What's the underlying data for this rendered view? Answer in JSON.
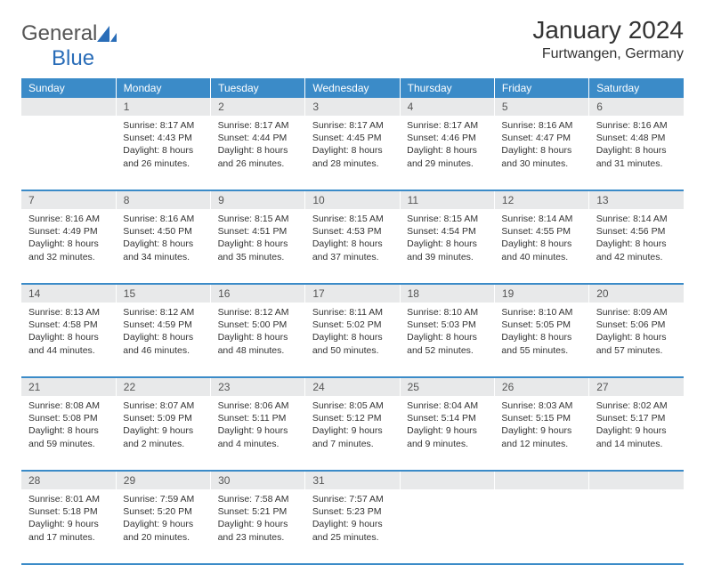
{
  "logo": {
    "general": "General",
    "blue": "Blue"
  },
  "title": "January 2024",
  "location": "Furtwangen, Germany",
  "colors": {
    "header_bg": "#3b8bc8",
    "header_text": "#ffffff",
    "daynum_bg": "#e8e9ea",
    "text": "#333333",
    "logo_gray": "#555555",
    "logo_blue": "#2a6db8"
  },
  "weekdays": [
    "Sunday",
    "Monday",
    "Tuesday",
    "Wednesday",
    "Thursday",
    "Friday",
    "Saturday"
  ],
  "weeks": [
    {
      "days": [
        {
          "num": "",
          "sunrise": "",
          "sunset": "",
          "daylight1": "",
          "daylight2": ""
        },
        {
          "num": "1",
          "sunrise": "Sunrise: 8:17 AM",
          "sunset": "Sunset: 4:43 PM",
          "daylight1": "Daylight: 8 hours",
          "daylight2": "and 26 minutes."
        },
        {
          "num": "2",
          "sunrise": "Sunrise: 8:17 AM",
          "sunset": "Sunset: 4:44 PM",
          "daylight1": "Daylight: 8 hours",
          "daylight2": "and 26 minutes."
        },
        {
          "num": "3",
          "sunrise": "Sunrise: 8:17 AM",
          "sunset": "Sunset: 4:45 PM",
          "daylight1": "Daylight: 8 hours",
          "daylight2": "and 28 minutes."
        },
        {
          "num": "4",
          "sunrise": "Sunrise: 8:17 AM",
          "sunset": "Sunset: 4:46 PM",
          "daylight1": "Daylight: 8 hours",
          "daylight2": "and 29 minutes."
        },
        {
          "num": "5",
          "sunrise": "Sunrise: 8:16 AM",
          "sunset": "Sunset: 4:47 PM",
          "daylight1": "Daylight: 8 hours",
          "daylight2": "and 30 minutes."
        },
        {
          "num": "6",
          "sunrise": "Sunrise: 8:16 AM",
          "sunset": "Sunset: 4:48 PM",
          "daylight1": "Daylight: 8 hours",
          "daylight2": "and 31 minutes."
        }
      ]
    },
    {
      "days": [
        {
          "num": "7",
          "sunrise": "Sunrise: 8:16 AM",
          "sunset": "Sunset: 4:49 PM",
          "daylight1": "Daylight: 8 hours",
          "daylight2": "and 32 minutes."
        },
        {
          "num": "8",
          "sunrise": "Sunrise: 8:16 AM",
          "sunset": "Sunset: 4:50 PM",
          "daylight1": "Daylight: 8 hours",
          "daylight2": "and 34 minutes."
        },
        {
          "num": "9",
          "sunrise": "Sunrise: 8:15 AM",
          "sunset": "Sunset: 4:51 PM",
          "daylight1": "Daylight: 8 hours",
          "daylight2": "and 35 minutes."
        },
        {
          "num": "10",
          "sunrise": "Sunrise: 8:15 AM",
          "sunset": "Sunset: 4:53 PM",
          "daylight1": "Daylight: 8 hours",
          "daylight2": "and 37 minutes."
        },
        {
          "num": "11",
          "sunrise": "Sunrise: 8:15 AM",
          "sunset": "Sunset: 4:54 PM",
          "daylight1": "Daylight: 8 hours",
          "daylight2": "and 39 minutes."
        },
        {
          "num": "12",
          "sunrise": "Sunrise: 8:14 AM",
          "sunset": "Sunset: 4:55 PM",
          "daylight1": "Daylight: 8 hours",
          "daylight2": "and 40 minutes."
        },
        {
          "num": "13",
          "sunrise": "Sunrise: 8:14 AM",
          "sunset": "Sunset: 4:56 PM",
          "daylight1": "Daylight: 8 hours",
          "daylight2": "and 42 minutes."
        }
      ]
    },
    {
      "days": [
        {
          "num": "14",
          "sunrise": "Sunrise: 8:13 AM",
          "sunset": "Sunset: 4:58 PM",
          "daylight1": "Daylight: 8 hours",
          "daylight2": "and 44 minutes."
        },
        {
          "num": "15",
          "sunrise": "Sunrise: 8:12 AM",
          "sunset": "Sunset: 4:59 PM",
          "daylight1": "Daylight: 8 hours",
          "daylight2": "and 46 minutes."
        },
        {
          "num": "16",
          "sunrise": "Sunrise: 8:12 AM",
          "sunset": "Sunset: 5:00 PM",
          "daylight1": "Daylight: 8 hours",
          "daylight2": "and 48 minutes."
        },
        {
          "num": "17",
          "sunrise": "Sunrise: 8:11 AM",
          "sunset": "Sunset: 5:02 PM",
          "daylight1": "Daylight: 8 hours",
          "daylight2": "and 50 minutes."
        },
        {
          "num": "18",
          "sunrise": "Sunrise: 8:10 AM",
          "sunset": "Sunset: 5:03 PM",
          "daylight1": "Daylight: 8 hours",
          "daylight2": "and 52 minutes."
        },
        {
          "num": "19",
          "sunrise": "Sunrise: 8:10 AM",
          "sunset": "Sunset: 5:05 PM",
          "daylight1": "Daylight: 8 hours",
          "daylight2": "and 55 minutes."
        },
        {
          "num": "20",
          "sunrise": "Sunrise: 8:09 AM",
          "sunset": "Sunset: 5:06 PM",
          "daylight1": "Daylight: 8 hours",
          "daylight2": "and 57 minutes."
        }
      ]
    },
    {
      "days": [
        {
          "num": "21",
          "sunrise": "Sunrise: 8:08 AM",
          "sunset": "Sunset: 5:08 PM",
          "daylight1": "Daylight: 8 hours",
          "daylight2": "and 59 minutes."
        },
        {
          "num": "22",
          "sunrise": "Sunrise: 8:07 AM",
          "sunset": "Sunset: 5:09 PM",
          "daylight1": "Daylight: 9 hours",
          "daylight2": "and 2 minutes."
        },
        {
          "num": "23",
          "sunrise": "Sunrise: 8:06 AM",
          "sunset": "Sunset: 5:11 PM",
          "daylight1": "Daylight: 9 hours",
          "daylight2": "and 4 minutes."
        },
        {
          "num": "24",
          "sunrise": "Sunrise: 8:05 AM",
          "sunset": "Sunset: 5:12 PM",
          "daylight1": "Daylight: 9 hours",
          "daylight2": "and 7 minutes."
        },
        {
          "num": "25",
          "sunrise": "Sunrise: 8:04 AM",
          "sunset": "Sunset: 5:14 PM",
          "daylight1": "Daylight: 9 hours",
          "daylight2": "and 9 minutes."
        },
        {
          "num": "26",
          "sunrise": "Sunrise: 8:03 AM",
          "sunset": "Sunset: 5:15 PM",
          "daylight1": "Daylight: 9 hours",
          "daylight2": "and 12 minutes."
        },
        {
          "num": "27",
          "sunrise": "Sunrise: 8:02 AM",
          "sunset": "Sunset: 5:17 PM",
          "daylight1": "Daylight: 9 hours",
          "daylight2": "and 14 minutes."
        }
      ]
    },
    {
      "days": [
        {
          "num": "28",
          "sunrise": "Sunrise: 8:01 AM",
          "sunset": "Sunset: 5:18 PM",
          "daylight1": "Daylight: 9 hours",
          "daylight2": "and 17 minutes."
        },
        {
          "num": "29",
          "sunrise": "Sunrise: 7:59 AM",
          "sunset": "Sunset: 5:20 PM",
          "daylight1": "Daylight: 9 hours",
          "daylight2": "and 20 minutes."
        },
        {
          "num": "30",
          "sunrise": "Sunrise: 7:58 AM",
          "sunset": "Sunset: 5:21 PM",
          "daylight1": "Daylight: 9 hours",
          "daylight2": "and 23 minutes."
        },
        {
          "num": "31",
          "sunrise": "Sunrise: 7:57 AM",
          "sunset": "Sunset: 5:23 PM",
          "daylight1": "Daylight: 9 hours",
          "daylight2": "and 25 minutes."
        },
        {
          "num": "",
          "sunrise": "",
          "sunset": "",
          "daylight1": "",
          "daylight2": ""
        },
        {
          "num": "",
          "sunrise": "",
          "sunset": "",
          "daylight1": "",
          "daylight2": ""
        },
        {
          "num": "",
          "sunrise": "",
          "sunset": "",
          "daylight1": "",
          "daylight2": ""
        }
      ]
    }
  ]
}
